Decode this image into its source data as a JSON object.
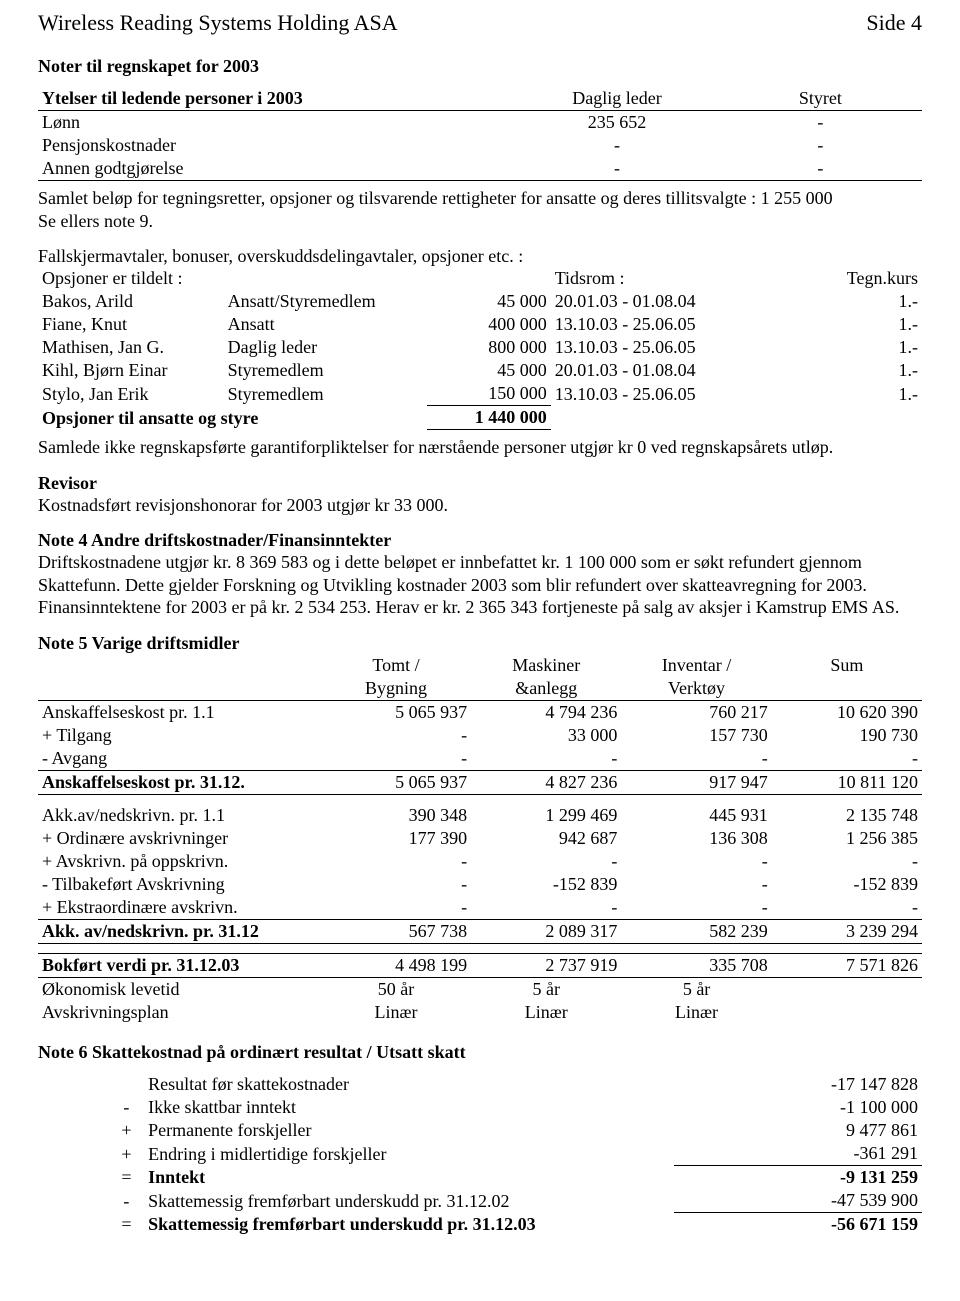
{
  "header": {
    "company": "Wireless Reading Systems Holding ASA",
    "page_label": "Side 4"
  },
  "notes_title": "Noter til regnskapet for 2003",
  "ytelser": {
    "title": "Ytelser til ledende personer i 2003",
    "col_leader": "Daglig leder",
    "col_board": "Styret",
    "rows": [
      {
        "label": "Lønn",
        "leader": "235 652",
        "board": "-"
      },
      {
        "label": "Pensjonskostnader",
        "leader": "-",
        "board": "-"
      },
      {
        "label": "Annen godtgjørelse",
        "leader": "-",
        "board": "-"
      }
    ]
  },
  "text1": "Samlet beløp for tegningsretter, opsjoner og tilsvarende rettigheter for ansatte og deres tillitsvalgte :  1 255 000",
  "text1b": "Se ellers note 9.",
  "text2": "Fallskjermavtaler, bonuser, overskuddsdelingavtaler, opsjoner etc. :",
  "opsjoner": {
    "head_left": "Opsjoner er tildelt :",
    "head_tidsrom": "Tidsrom :",
    "head_tegn": "Tegn.kurs",
    "rows": [
      {
        "name": "Bakos, Arild",
        "role": "Ansatt/Styremedlem",
        "amount": "45 000",
        "period": "20.01.03 - 01.08.04",
        "price": "1.-"
      },
      {
        "name": "Fiane, Knut",
        "role": "Ansatt",
        "amount": "400 000",
        "period": "13.10.03 - 25.06.05",
        "price": "1.-"
      },
      {
        "name": "Mathisen, Jan G.",
        "role": "Daglig leder",
        "amount": "800 000",
        "period": "13.10.03 - 25.06.05",
        "price": "1.-"
      },
      {
        "name": "Kihl, Bjørn Einar",
        "role": "Styremedlem",
        "amount": "45 000",
        "period": "20.01.03 - 01.08.04",
        "price": "1.-"
      },
      {
        "name": "Stylo, Jan Erik",
        "role": "Styremedlem",
        "amount": "150 000",
        "period": "13.10.03 - 25.06.05",
        "price": "1.-"
      }
    ],
    "total_label": "Opsjoner til ansatte og styre",
    "total_value": "1 440 000"
  },
  "text3": "Samlede ikke regnskapsførte garantiforpliktelser for nærstående personer utgjør kr 0 ved regnskapsårets utløp.",
  "revisor": {
    "title": "Revisor",
    "text": "Kostnadsført revisjonshonorar for 2003 utgjør kr 33 000."
  },
  "note4": {
    "title": "Note 4   Andre driftskostnader/Finansinntekter",
    "text": "Driftskostnadene utgjør kr. 8 369 583 og i dette beløpet er innbefattet kr. 1 100 000 som er søkt refundert gjennom Skattefunn. Dette gjelder Forskning og Utvikling kostnader 2003 som blir refundert over skatteavregning for 2003. Finansinntektene for 2003 er på kr. 2 534 253. Herav er kr. 2 365 343 fortjeneste på salg av aksjer i Kamstrup EMS AS."
  },
  "note5": {
    "title": "Note 5   Varige driftsmidler",
    "cols": {
      "c1a": "Tomt /",
      "c1b": "Bygning",
      "c2a": "Maskiner",
      "c2b": "&anlegg",
      "c3a": "Inventar /",
      "c3b": "Verktøy",
      "c4": "Sum"
    },
    "rows1": [
      {
        "label": "Anskaffelseskost pr. 1.1",
        "v": [
          "5 065 937",
          "4 794 236",
          "760 217",
          "10 620 390"
        ]
      },
      {
        "label": "+ Tilgang",
        "v": [
          "-",
          "33 000",
          "157 730",
          "190 730"
        ]
      },
      {
        "label": "- Avgang",
        "v": [
          "-",
          "-",
          "-",
          "-"
        ]
      }
    ],
    "sum1": {
      "label": "Anskaffelseskost pr. 31.12.",
      "v": [
        "5 065 937",
        "4 827 236",
        "917 947",
        "10 811 120"
      ]
    },
    "rows2": [
      {
        "label": "Akk.av/nedskrivn. pr. 1.1",
        "v": [
          "390 348",
          "1 299 469",
          "445 931",
          "2 135 748"
        ]
      },
      {
        "label": "+ Ordinære avskrivninger",
        "v": [
          "177 390",
          "942 687",
          "136 308",
          "1 256 385"
        ]
      },
      {
        "label": "+ Avskrivn. på oppskrivn.",
        "v": [
          "-",
          "-",
          "-",
          "-"
        ]
      },
      {
        "label": "- Tilbakeført Avskrivning",
        "v": [
          "-",
          "-152 839",
          "-",
          "-152 839"
        ]
      },
      {
        "label": "+ Ekstraordinære avskrivn.",
        "v": [
          "-",
          "-",
          "-",
          "-"
        ]
      }
    ],
    "sum2": {
      "label": "Akk. av/nedskrivn. pr. 31.12",
      "v": [
        "567 738",
        "2 089 317",
        "582 239",
        "3 239 294"
      ]
    },
    "bokfort": {
      "label": "Bokført verdi pr. 31.12.03",
      "v": [
        "4 498 199",
        "2 737 919",
        "335 708",
        "7 571 826"
      ]
    },
    "rows3": [
      {
        "label": "Økonomisk levetid",
        "v": [
          "50 år",
          "5 år",
          "5 år",
          ""
        ]
      },
      {
        "label": "Avskrivningsplan",
        "v": [
          "Linær",
          "Linær",
          "Linær",
          ""
        ]
      }
    ]
  },
  "note6": {
    "title": "Note 6   Skattekostnad på ordinært resultat / Utsatt skatt",
    "rows": [
      {
        "pre": "",
        "label": "Resultat før skattekostnader",
        "val": "-17 147 828"
      },
      {
        "pre": "-",
        "label": "Ikke skattbar inntekt",
        "val": "-1 100 000"
      },
      {
        "pre": "+",
        "label": "Permanente forskjeller",
        "val": "9 477 861"
      },
      {
        "pre": "+",
        "label": "Endring i midlertidige forskjeller",
        "val": "-361 291"
      },
      {
        "pre": "=",
        "label": "Inntekt",
        "val": "-9 131 259",
        "bold": true
      },
      {
        "pre": "-",
        "label": "Skattemessig fremførbart underskudd pr. 31.12.02",
        "val": "-47 539 900"
      },
      {
        "pre": "=",
        "label": "Skattemessig fremførbart underskudd pr. 31.12.03",
        "val": "-56 671 159",
        "bold": true
      }
    ]
  }
}
